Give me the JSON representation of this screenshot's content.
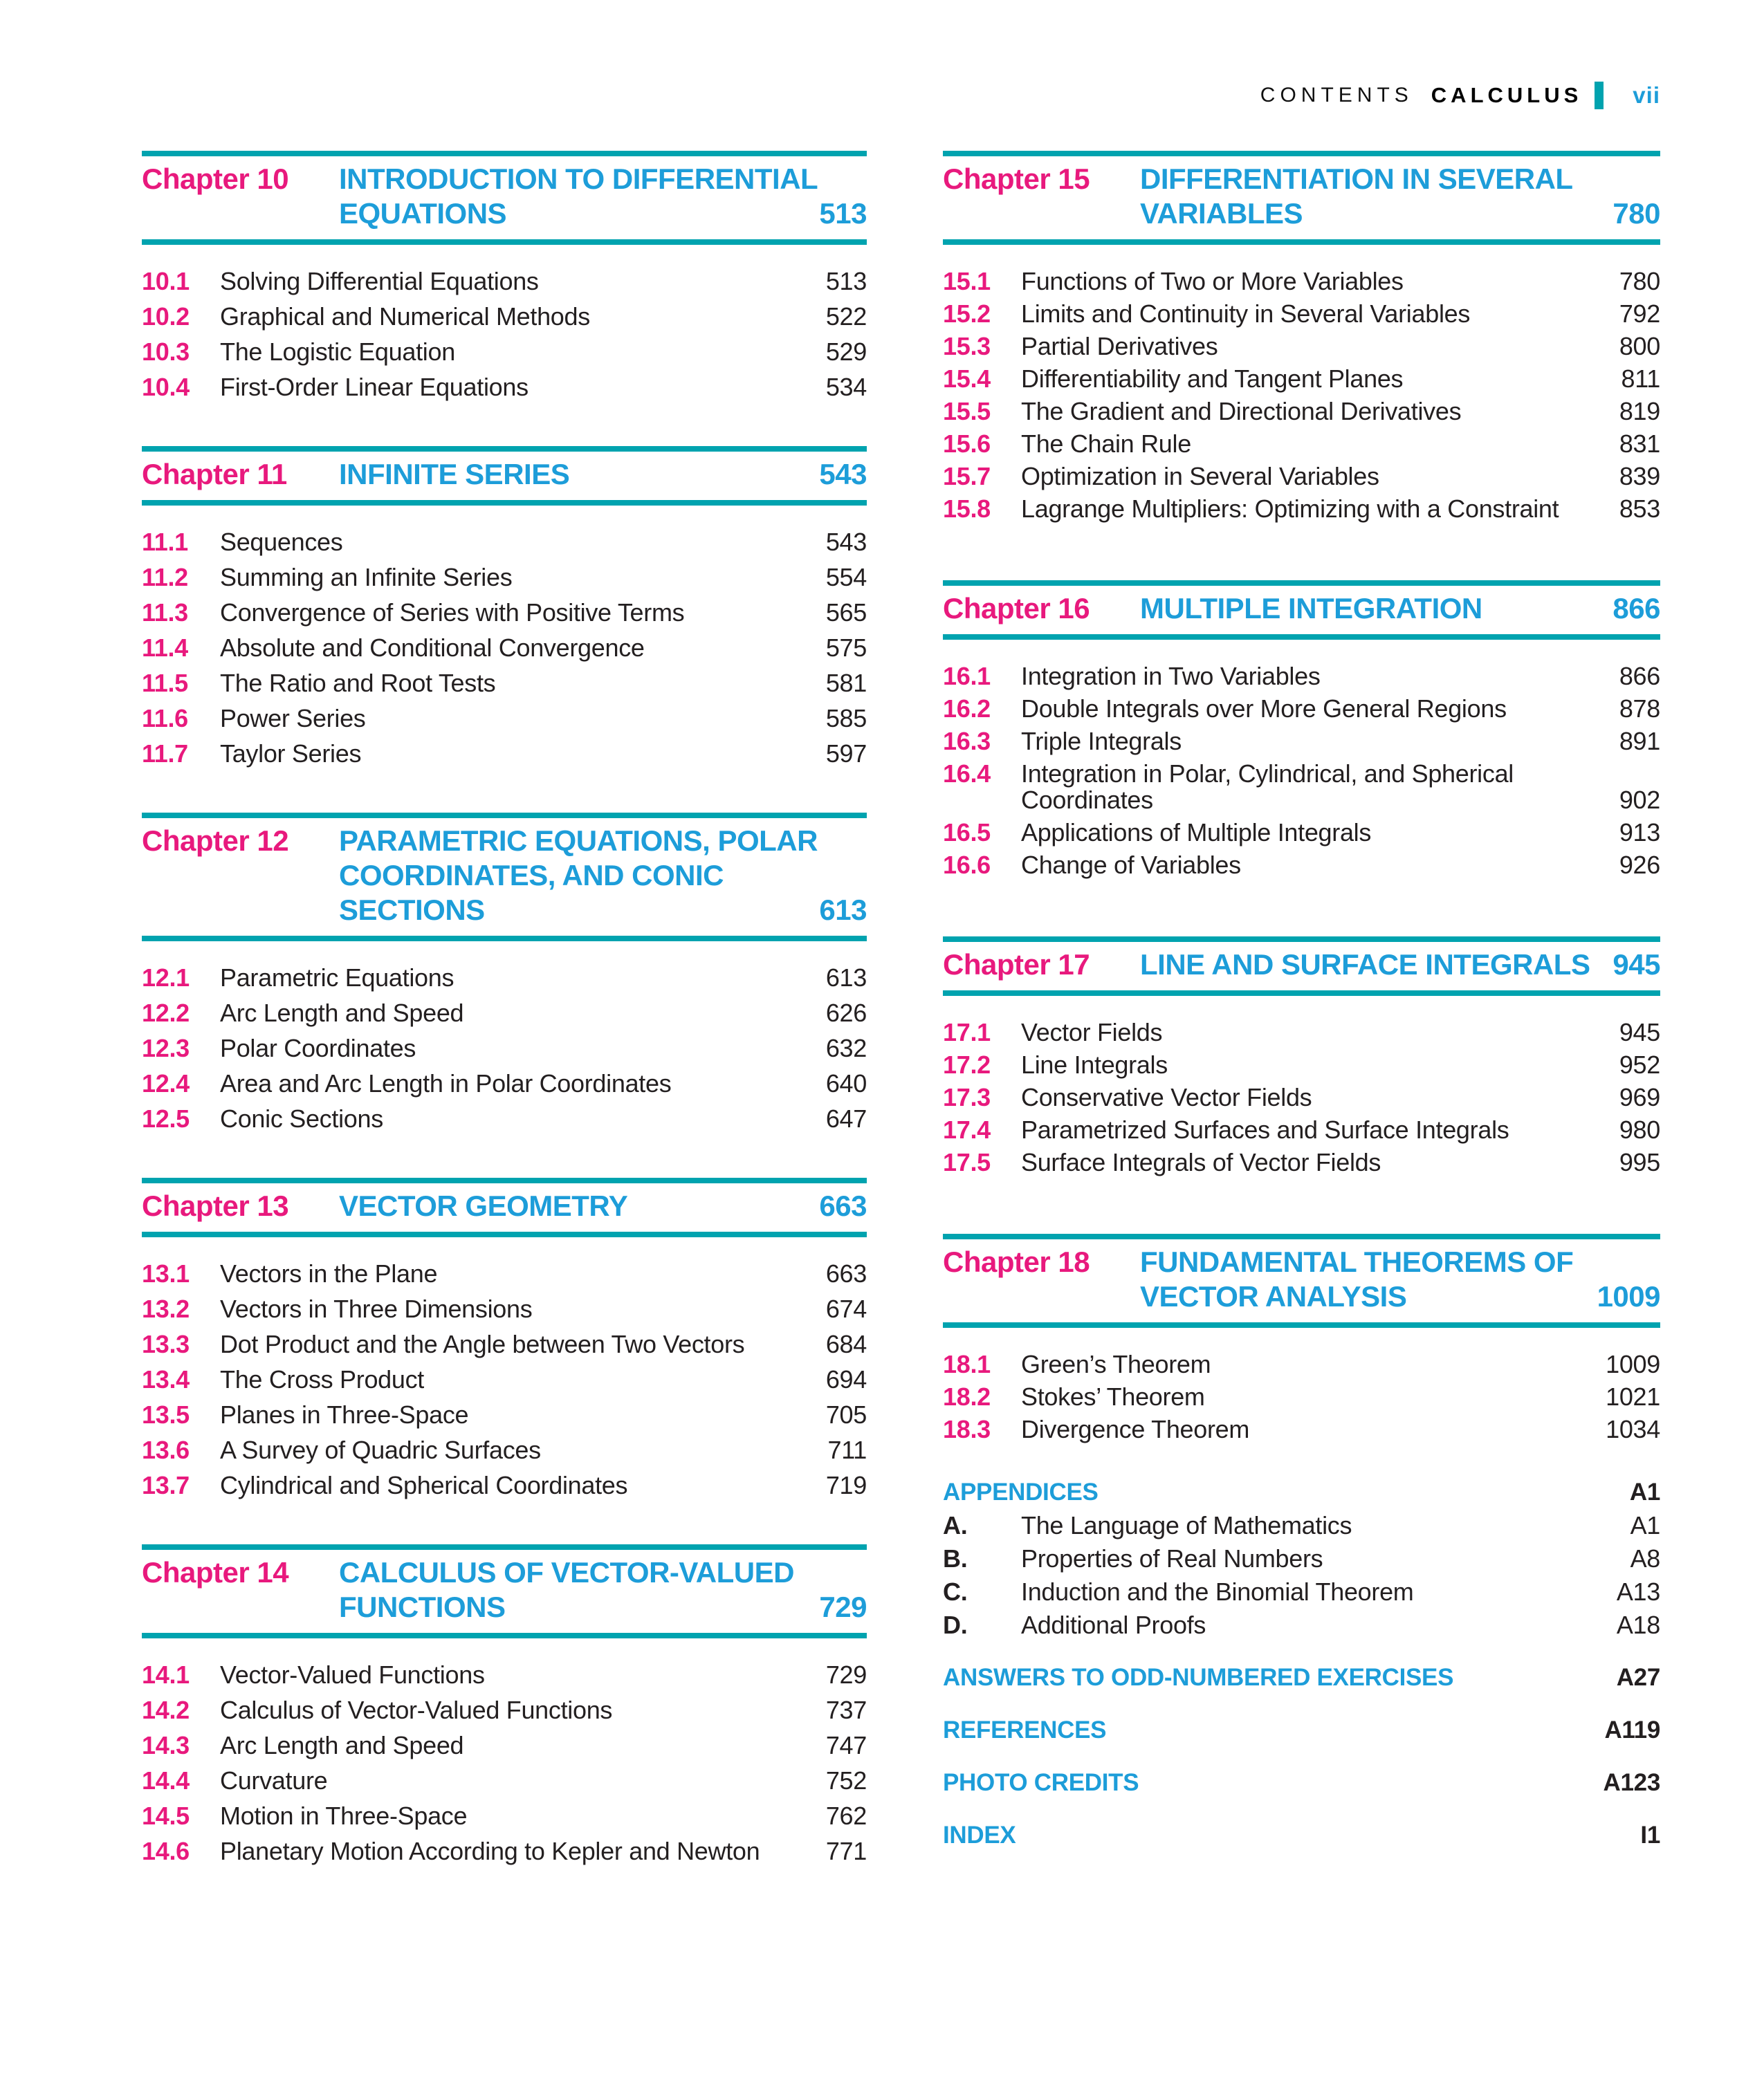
{
  "colors": {
    "pink": "#e8197d",
    "cyan": "#1d9dd9",
    "teal": "#00a3af",
    "ink": "#231f20"
  },
  "header": {
    "contents_label": "CONTENTS",
    "book_title": "CALCULUS",
    "page_label": "vii"
  },
  "columns": {
    "left": {
      "chapters": [
        {
          "number": "Chapter 10",
          "title_lines": [
            "INTRODUCTION TO DIFFERENTIAL",
            "EQUATIONS"
          ],
          "page": "513",
          "sections": [
            {
              "num": "10.1",
              "title_lines": [
                "Solving Differential Equations"
              ],
              "page": "513"
            },
            {
              "num": "10.2",
              "title_lines": [
                "Graphical and Numerical Methods"
              ],
              "page": "522"
            },
            {
              "num": "10.3",
              "title_lines": [
                "The Logistic Equation"
              ],
              "page": "529"
            },
            {
              "num": "10.4",
              "title_lines": [
                "First-Order Linear Equations"
              ],
              "page": "534"
            }
          ]
        },
        {
          "number": "Chapter 11",
          "title_lines": [
            "INFINITE SERIES"
          ],
          "page": "543",
          "sections": [
            {
              "num": "11.1",
              "title_lines": [
                "Sequences"
              ],
              "page": "543"
            },
            {
              "num": "11.2",
              "title_lines": [
                "Summing an Infinite Series"
              ],
              "page": "554"
            },
            {
              "num": "11.3",
              "title_lines": [
                "Convergence of Series with Positive Terms"
              ],
              "page": "565"
            },
            {
              "num": "11.4",
              "title_lines": [
                "Absolute and Conditional Convergence"
              ],
              "page": "575"
            },
            {
              "num": "11.5",
              "title_lines": [
                "The Ratio and Root Tests"
              ],
              "page": "581"
            },
            {
              "num": "11.6",
              "title_lines": [
                "Power Series"
              ],
              "page": "585"
            },
            {
              "num": "11.7",
              "title_lines": [
                "Taylor Series"
              ],
              "page": "597"
            }
          ]
        },
        {
          "number": "Chapter 12",
          "title_lines": [
            "PARAMETRIC EQUATIONS, POLAR",
            "COORDINATES, AND CONIC",
            "SECTIONS"
          ],
          "page": "613",
          "sections": [
            {
              "num": "12.1",
              "title_lines": [
                "Parametric Equations"
              ],
              "page": "613"
            },
            {
              "num": "12.2",
              "title_lines": [
                "Arc Length and Speed"
              ],
              "page": "626"
            },
            {
              "num": "12.3",
              "title_lines": [
                "Polar Coordinates"
              ],
              "page": "632"
            },
            {
              "num": "12.4",
              "title_lines": [
                "Area and Arc Length in Polar Coordinates"
              ],
              "page": "640"
            },
            {
              "num": "12.5",
              "title_lines": [
                "Conic Sections"
              ],
              "page": "647"
            }
          ]
        },
        {
          "number": "Chapter 13",
          "title_lines": [
            "VECTOR GEOMETRY"
          ],
          "page": "663",
          "sections": [
            {
              "num": "13.1",
              "title_lines": [
                "Vectors in the Plane"
              ],
              "page": "663"
            },
            {
              "num": "13.2",
              "title_lines": [
                "Vectors in Three Dimensions"
              ],
              "page": "674"
            },
            {
              "num": "13.3",
              "title_lines": [
                "Dot Product and the Angle between Two Vectors"
              ],
              "page": "684"
            },
            {
              "num": "13.4",
              "title_lines": [
                "The Cross Product"
              ],
              "page": "694"
            },
            {
              "num": "13.5",
              "title_lines": [
                "Planes in Three-Space"
              ],
              "page": "705"
            },
            {
              "num": "13.6",
              "title_lines": [
                "A Survey of Quadric Surfaces"
              ],
              "page": "711"
            },
            {
              "num": "13.7",
              "title_lines": [
                "Cylindrical and Spherical Coordinates"
              ],
              "page": "719"
            }
          ]
        },
        {
          "number": "Chapter 14",
          "title_lines": [
            "CALCULUS OF VECTOR-VALUED",
            "FUNCTIONS"
          ],
          "page": "729",
          "sections": [
            {
              "num": "14.1",
              "title_lines": [
                "Vector-Valued Functions"
              ],
              "page": "729"
            },
            {
              "num": "14.2",
              "title_lines": [
                "Calculus of Vector-Valued Functions"
              ],
              "page": "737"
            },
            {
              "num": "14.3",
              "title_lines": [
                "Arc Length and Speed"
              ],
              "page": "747"
            },
            {
              "num": "14.4",
              "title_lines": [
                "Curvature"
              ],
              "page": "752"
            },
            {
              "num": "14.5",
              "title_lines": [
                "Motion in Three-Space"
              ],
              "page": "762"
            },
            {
              "num": "14.6",
              "title_lines": [
                "Planetary Motion According to Kepler and Newton"
              ],
              "page": "771"
            }
          ]
        }
      ]
    },
    "right": {
      "chapters": [
        {
          "number": "Chapter 15",
          "title_lines": [
            "DIFFERENTIATION IN SEVERAL",
            "VARIABLES"
          ],
          "page": "780",
          "sections": [
            {
              "num": "15.1",
              "title_lines": [
                "Functions of Two or More Variables"
              ],
              "page": "780"
            },
            {
              "num": "15.2",
              "title_lines": [
                "Limits and Continuity in Several Variables"
              ],
              "page": "792"
            },
            {
              "num": "15.3",
              "title_lines": [
                "Partial Derivatives"
              ],
              "page": "800"
            },
            {
              "num": "15.4",
              "title_lines": [
                "Differentiability and Tangent Planes"
              ],
              "page": "811"
            },
            {
              "num": "15.5",
              "title_lines": [
                "The Gradient and Directional Derivatives"
              ],
              "page": "819"
            },
            {
              "num": "15.6",
              "title_lines": [
                "The Chain Rule"
              ],
              "page": "831"
            },
            {
              "num": "15.7",
              "title_lines": [
                "Optimization in Several Variables"
              ],
              "page": "839"
            },
            {
              "num": "15.8",
              "title_lines": [
                "Lagrange Multipliers: Optimizing with a Constraint"
              ],
              "page": "853"
            }
          ]
        },
        {
          "number": "Chapter 16",
          "title_lines": [
            "MULTIPLE INTEGRATION"
          ],
          "page": "866",
          "sections": [
            {
              "num": "16.1",
              "title_lines": [
                "Integration in Two Variables"
              ],
              "page": "866"
            },
            {
              "num": "16.2",
              "title_lines": [
                "Double Integrals over More General Regions"
              ],
              "page": "878"
            },
            {
              "num": "16.3",
              "title_lines": [
                "Triple Integrals"
              ],
              "page": "891"
            },
            {
              "num": "16.4",
              "title_lines": [
                "Integration in Polar, Cylindrical, and Spherical",
                "Coordinates"
              ],
              "page": "902"
            },
            {
              "num": "16.5",
              "title_lines": [
                "Applications of Multiple Integrals"
              ],
              "page": "913"
            },
            {
              "num": "16.6",
              "title_lines": [
                "Change of Variables"
              ],
              "page": "926"
            }
          ]
        },
        {
          "number": "Chapter 17",
          "title_lines": [
            "LINE AND SURFACE INTEGRALS"
          ],
          "page": "945",
          "sections": [
            {
              "num": "17.1",
              "title_lines": [
                "Vector Fields"
              ],
              "page": "945"
            },
            {
              "num": "17.2",
              "title_lines": [
                "Line Integrals"
              ],
              "page": "952"
            },
            {
              "num": "17.3",
              "title_lines": [
                "Conservative Vector Fields"
              ],
              "page": "969"
            },
            {
              "num": "17.4",
              "title_lines": [
                "Parametrized Surfaces and Surface Integrals"
              ],
              "page": "980"
            },
            {
              "num": "17.5",
              "title_lines": [
                "Surface Integrals of Vector Fields"
              ],
              "page": "995"
            }
          ]
        },
        {
          "number": "Chapter 18",
          "title_lines": [
            "FUNDAMENTAL THEOREMS OF",
            "VECTOR ANALYSIS"
          ],
          "page": "1009",
          "sections": [
            {
              "num": "18.1",
              "title_lines": [
                "Green’s Theorem"
              ],
              "page": "1009"
            },
            {
              "num": "18.2",
              "title_lines": [
                "Stokes’ Theorem"
              ],
              "page": "1021"
            },
            {
              "num": "18.3",
              "title_lines": [
                "Divergence Theorem"
              ],
              "page": "1034"
            }
          ]
        }
      ],
      "back_matter": [
        {
          "type": "heading",
          "label": "APPENDICES",
          "page": "A1"
        },
        {
          "type": "item",
          "num": "A.",
          "title": "The Language of Mathematics",
          "page": "A1"
        },
        {
          "type": "item",
          "num": "B.",
          "title": "Properties of Real Numbers",
          "page": "A8"
        },
        {
          "type": "item",
          "num": "C.",
          "title": "Induction and the Binomial Theorem",
          "page": "A13"
        },
        {
          "type": "item",
          "num": "D.",
          "title": "Additional Proofs",
          "page": "A18"
        },
        {
          "type": "heading",
          "label": "ANSWERS TO ODD-NUMBERED EXERCISES",
          "page": "A27"
        },
        {
          "type": "heading",
          "label": "REFERENCES",
          "page": "A119"
        },
        {
          "type": "heading",
          "label": "PHOTO CREDITS",
          "page": "A123"
        },
        {
          "type": "heading",
          "label": "INDEX",
          "page": "I1"
        }
      ]
    }
  }
}
